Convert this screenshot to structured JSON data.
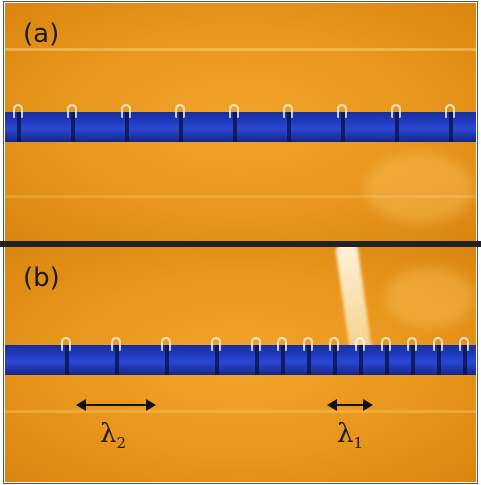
{
  "panels": {
    "a": {
      "label": "(a)"
    },
    "b": {
      "label": "(b)"
    }
  },
  "annotations": {
    "lambda2": {
      "symbol": "λ",
      "sub": "2"
    },
    "lambda1": {
      "symbol": "λ",
      "sub": "1"
    }
  },
  "colors": {
    "background": "#e8961c",
    "strip": "#1f3cc2",
    "separator": "#222222"
  }
}
